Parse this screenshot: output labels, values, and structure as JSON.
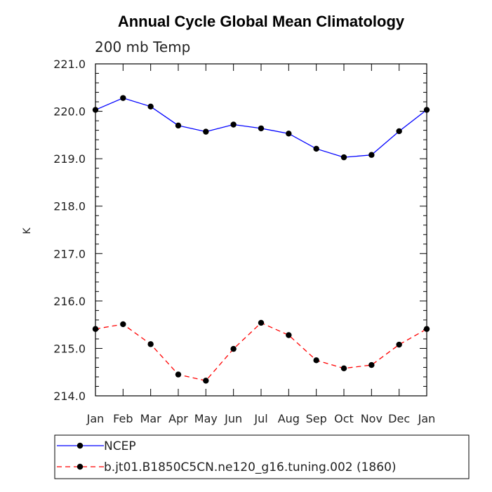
{
  "chart_data": {
    "type": "line",
    "title": "Annual Cycle Global Mean Climatology",
    "subtitle": "200 mb Temp",
    "ylabel": "K",
    "xlabel": "",
    "categories": [
      "Jan",
      "Feb",
      "Mar",
      "Apr",
      "May",
      "Jun",
      "Jul",
      "Aug",
      "Sep",
      "Oct",
      "Nov",
      "Dec",
      "Jan"
    ],
    "ylim": [
      214.0,
      221.0
    ],
    "yticks": [
      "214.0",
      "215.0",
      "216.0",
      "217.0",
      "218.0",
      "219.0",
      "220.0",
      "221.0"
    ],
    "grid": false,
    "legend_placement": "bottom",
    "series": [
      {
        "name": "NCEP",
        "color": "#0000ff",
        "dash": "solid",
        "values": [
          220.03,
          220.28,
          220.1,
          219.7,
          219.57,
          219.72,
          219.64,
          219.53,
          219.21,
          219.03,
          219.08,
          219.58,
          220.03
        ]
      },
      {
        "name": "b.jt01.B1850C5CN.ne120_g16.tuning.002 (1860)",
        "color": "#ff0000",
        "dash": "dashed",
        "values": [
          215.41,
          215.51,
          215.09,
          214.45,
          214.32,
          214.99,
          215.54,
          215.28,
          214.75,
          214.58,
          214.65,
          215.08,
          215.41
        ]
      }
    ]
  }
}
